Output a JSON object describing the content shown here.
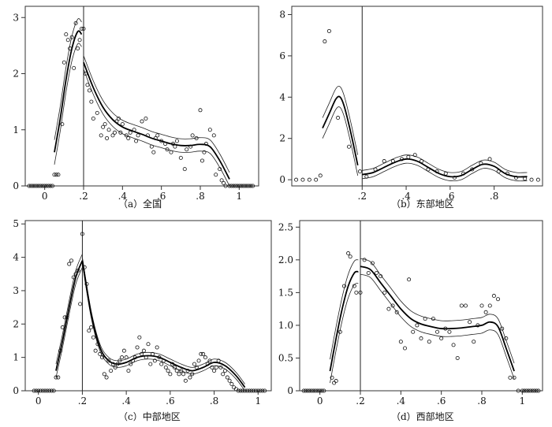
{
  "figure": {
    "captions": [
      "（a）全国",
      "（b）东部地区",
      "（c）中部地区",
      "（d）西部地区"
    ]
  },
  "chart_data": [
    {
      "type": "line",
      "caption": "（a）全国",
      "xlim": [
        -0.1,
        1.1
      ],
      "ylim": [
        0,
        3.2
      ],
      "x_ticks": [
        0,
        0.2,
        0.4,
        0.6,
        0.8,
        1
      ],
      "x_tick_labels": [
        "0",
        ".2",
        ".4",
        ".6",
        ".8",
        "1"
      ],
      "y_ticks": [
        0,
        1,
        2,
        3
      ],
      "y_tick_labels": [
        "0",
        "1",
        "2",
        "3"
      ],
      "vline_x": 0.2,
      "grid": false,
      "left_fit": {
        "x": [
          0.05,
          0.08,
          0.11,
          0.14,
          0.17,
          0.19
        ],
        "y": [
          0.6,
          1.2,
          1.9,
          2.45,
          2.75,
          2.7
        ],
        "band": 0.22
      },
      "right_fit": {
        "x": [
          0.2,
          0.25,
          0.3,
          0.35,
          0.4,
          0.45,
          0.5,
          0.55,
          0.6,
          0.65,
          0.7,
          0.75,
          0.8,
          0.85,
          0.9,
          0.95
        ],
        "y": [
          2.2,
          1.75,
          1.4,
          1.18,
          1.05,
          0.98,
          0.92,
          0.85,
          0.8,
          0.75,
          0.72,
          0.72,
          0.74,
          0.7,
          0.45,
          0.12
        ],
        "band": 0.12
      },
      "scatter": {
        "x": [
          -0.08,
          -0.07,
          -0.06,
          -0.05,
          -0.04,
          -0.03,
          -0.02,
          -0.01,
          0.0,
          0.01,
          0.02,
          0.03,
          0.04,
          0.05,
          0.06,
          0.07,
          0.09,
          0.1,
          0.11,
          0.12,
          0.13,
          0.14,
          0.15,
          0.16,
          0.17,
          0.18,
          0.19,
          0.2,
          0.21,
          0.22,
          0.23,
          0.24,
          0.25,
          0.27,
          0.29,
          0.3,
          0.31,
          0.32,
          0.33,
          0.35,
          0.36,
          0.37,
          0.38,
          0.39,
          0.4,
          0.42,
          0.43,
          0.44,
          0.46,
          0.47,
          0.48,
          0.5,
          0.52,
          0.53,
          0.55,
          0.56,
          0.57,
          0.58,
          0.6,
          0.62,
          0.63,
          0.65,
          0.66,
          0.67,
          0.68,
          0.7,
          0.72,
          0.73,
          0.75,
          0.76,
          0.78,
          0.8,
          0.81,
          0.82,
          0.83,
          0.85,
          0.87,
          0.88,
          0.9,
          0.91,
          0.92,
          0.93,
          0.95,
          0.96,
          0.97,
          0.98,
          0.99,
          1.0,
          1.01,
          1.02,
          1.03,
          1.04,
          1.05,
          1.06,
          1.07
        ],
        "y": [
          0,
          0,
          0,
          0,
          0,
          0,
          0,
          0,
          0,
          0,
          0,
          0,
          0,
          0.2,
          0.2,
          0.2,
          1.1,
          2.2,
          2.7,
          2.6,
          2.45,
          2.65,
          2.1,
          2.9,
          2.45,
          2.6,
          2.8,
          2.8,
          2.0,
          1.8,
          1.7,
          1.5,
          1.2,
          1.3,
          0.9,
          1.05,
          1.1,
          0.85,
          1.0,
          0.9,
          0.95,
          1.15,
          1.2,
          0.95,
          1.1,
          0.9,
          0.85,
          0.95,
          1.0,
          0.8,
          0.9,
          1.15,
          1.2,
          0.9,
          0.7,
          0.6,
          0.85,
          0.9,
          0.8,
          0.75,
          0.65,
          0.6,
          0.75,
          0.7,
          0.8,
          0.5,
          0.3,
          0.65,
          0.7,
          0.9,
          0.85,
          1.35,
          0.45,
          0.6,
          0.75,
          1.0,
          0.9,
          0.2,
          0.3,
          0.1,
          0.05,
          0,
          0,
          0,
          0,
          0,
          0,
          0,
          0,
          0,
          0,
          0,
          0,
          0,
          0
        ]
      }
    },
    {
      "type": "line",
      "caption": "（b）东部地区",
      "xlim": [
        -0.12,
        1.02
      ],
      "ylim": [
        -0.3,
        8.4
      ],
      "x_ticks": [
        0.2,
        0.4,
        0.6,
        0.8
      ],
      "x_tick_labels": [
        ".2",
        ".4",
        ".6",
        ".8"
      ],
      "y_ticks": [
        0,
        2,
        4,
        6,
        8
      ],
      "y_tick_labels": [
        "0",
        "2",
        "4",
        "6",
        "8"
      ],
      "vline_x": 0.2,
      "grid": false,
      "left_fit": {
        "x": [
          0.02,
          0.05,
          0.08,
          0.1,
          0.12,
          0.15,
          0.18
        ],
        "y": [
          2.5,
          3.2,
          3.9,
          4.0,
          3.5,
          2.2,
          0.7
        ],
        "band": 0.5
      },
      "right_fit": {
        "x": [
          0.2,
          0.25,
          0.3,
          0.35,
          0.4,
          0.45,
          0.5,
          0.55,
          0.6,
          0.65,
          0.7,
          0.75,
          0.8,
          0.85,
          0.9,
          0.95
        ],
        "y": [
          0.25,
          0.35,
          0.6,
          0.85,
          1.0,
          0.9,
          0.6,
          0.3,
          0.15,
          0.2,
          0.5,
          0.75,
          0.65,
          0.3,
          0.15,
          0.15
        ],
        "band": 0.2
      },
      "scatter": {
        "x": [
          -0.1,
          -0.07,
          -0.04,
          -0.01,
          0.01,
          0.03,
          0.05,
          0.09,
          0.14,
          0.19,
          0.22,
          0.26,
          0.3,
          0.34,
          0.38,
          0.41,
          0.44,
          0.47,
          0.5,
          0.54,
          0.58,
          0.62,
          0.66,
          0.7,
          0.74,
          0.78,
          0.82,
          0.86,
          0.9,
          0.94,
          0.97,
          1.0
        ],
        "y": [
          0,
          0,
          0,
          0,
          0.2,
          6.7,
          7.2,
          3.0,
          1.6,
          0.4,
          0.15,
          0.5,
          0.9,
          0.9,
          1.0,
          1.1,
          1.2,
          0.9,
          0.5,
          0.4,
          0.3,
          0.1,
          0.3,
          0.5,
          0.8,
          1.0,
          0.4,
          0.3,
          0.1,
          0.05,
          0.0,
          0.0
        ]
      }
    },
    {
      "type": "line",
      "caption": "（c）中部地区",
      "xlim": [
        -0.06,
        1.06
      ],
      "ylim": [
        0,
        5.1
      ],
      "x_ticks": [
        0,
        0.2,
        0.4,
        0.6,
        0.8,
        1
      ],
      "x_tick_labels": [
        "0",
        ".2",
        ".4",
        ".6",
        ".8",
        "1"
      ],
      "y_ticks": [
        0,
        1,
        2,
        3,
        4,
        5
      ],
      "y_tick_labels": [
        "0",
        "1",
        "2",
        "3",
        "4",
        "5"
      ],
      "vline_x": 0.2,
      "grid": false,
      "left_fit": {
        "x": [
          0.08,
          0.11,
          0.14,
          0.17,
          0.2
        ],
        "y": [
          0.6,
          1.5,
          2.5,
          3.4,
          3.9
        ],
        "band": 0.2
      },
      "right_fit": {
        "x": [
          0.2,
          0.24,
          0.28,
          0.32,
          0.36,
          0.4,
          0.45,
          0.5,
          0.55,
          0.6,
          0.65,
          0.7,
          0.75,
          0.8,
          0.85,
          0.9,
          0.94
        ],
        "y": [
          3.9,
          2.3,
          1.3,
          0.9,
          0.8,
          0.85,
          1.0,
          1.05,
          1.0,
          0.85,
          0.7,
          0.6,
          0.7,
          0.85,
          0.75,
          0.45,
          0.1
        ],
        "band": 0.1
      },
      "scatter": {
        "x": [
          -0.02,
          -0.01,
          0.0,
          0.01,
          0.02,
          0.03,
          0.04,
          0.05,
          0.06,
          0.07,
          0.08,
          0.09,
          0.1,
          0.11,
          0.12,
          0.13,
          0.14,
          0.15,
          0.16,
          0.17,
          0.18,
          0.19,
          0.2,
          0.21,
          0.22,
          0.23,
          0.24,
          0.25,
          0.26,
          0.27,
          0.28,
          0.29,
          0.3,
          0.31,
          0.32,
          0.33,
          0.34,
          0.35,
          0.36,
          0.37,
          0.38,
          0.39,
          0.4,
          0.41,
          0.42,
          0.43,
          0.44,
          0.45,
          0.46,
          0.47,
          0.48,
          0.49,
          0.5,
          0.51,
          0.52,
          0.53,
          0.54,
          0.55,
          0.56,
          0.57,
          0.58,
          0.59,
          0.6,
          0.61,
          0.62,
          0.63,
          0.64,
          0.65,
          0.66,
          0.67,
          0.68,
          0.69,
          0.7,
          0.71,
          0.72,
          0.73,
          0.74,
          0.75,
          0.76,
          0.77,
          0.78,
          0.79,
          0.8,
          0.81,
          0.82,
          0.83,
          0.84,
          0.85,
          0.86,
          0.87,
          0.88,
          0.89,
          0.9,
          0.91,
          0.92,
          0.93,
          0.94,
          0.95,
          0.96,
          0.97,
          0.98,
          0.99,
          1.0,
          1.01,
          1.02,
          1.03
        ],
        "y": [
          0,
          0,
          0,
          0,
          0,
          0,
          0,
          0,
          0,
          0,
          0.4,
          0.4,
          1.2,
          1.9,
          2.2,
          2.2,
          3.8,
          3.9,
          3.4,
          3.5,
          3.6,
          2.6,
          4.7,
          3.7,
          3.2,
          1.8,
          1.9,
          1.6,
          1.2,
          1.4,
          1.1,
          1.0,
          0.5,
          0.4,
          0.9,
          0.6,
          0.8,
          0.7,
          0.8,
          0.9,
          1.0,
          1.2,
          1.0,
          0.6,
          0.8,
          0.9,
          1.0,
          1.3,
          1.6,
          1.1,
          1.2,
          1.0,
          1.4,
          0.8,
          1.1,
          0.9,
          1.3,
          1.0,
          0.8,
          0.9,
          0.7,
          0.6,
          0.5,
          0.8,
          0.7,
          0.6,
          0.5,
          0.6,
          0.5,
          0.3,
          0.6,
          0.4,
          0.5,
          0.8,
          0.7,
          0.9,
          1.1,
          1.1,
          1.0,
          0.8,
          0.9,
          0.7,
          0.6,
          0.7,
          0.9,
          0.7,
          0.5,
          0.6,
          0.4,
          0.3,
          0.2,
          0.1,
          0.05,
          0,
          0,
          0,
          0,
          0,
          0,
          0,
          0,
          0,
          0,
          0,
          0,
          0
        ]
      }
    },
    {
      "type": "line",
      "caption": "（d）西部地区",
      "xlim": [
        -0.1,
        1.1
      ],
      "ylim": [
        0,
        2.6
      ],
      "x_ticks": [
        0,
        0.2,
        0.4,
        0.6,
        0.8,
        1
      ],
      "x_tick_labels": [
        "0",
        ".2",
        ".4",
        ".6",
        ".8",
        "1"
      ],
      "y_ticks": [
        0,
        0.5,
        1.0,
        1.5,
        2.0,
        2.5
      ],
      "y_tick_labels": [
        "0",
        "0.5",
        "1.0",
        "1.5",
        "2.0",
        "2.5"
      ],
      "vline_x": 0.2,
      "grid": false,
      "left_fit": {
        "x": [
          0.05,
          0.08,
          0.11,
          0.14,
          0.17,
          0.19
        ],
        "y": [
          0.3,
          0.8,
          1.25,
          1.6,
          1.8,
          1.82
        ],
        "band": 0.18
      },
      "right_fit": {
        "x": [
          0.2,
          0.25,
          0.3,
          0.35,
          0.4,
          0.45,
          0.5,
          0.55,
          0.6,
          0.65,
          0.7,
          0.75,
          0.8,
          0.84,
          0.88,
          0.92,
          0.96
        ],
        "y": [
          1.9,
          1.85,
          1.65,
          1.45,
          1.25,
          1.1,
          1.02,
          0.98,
          0.95,
          0.95,
          0.96,
          0.98,
          1.0,
          1.05,
          0.98,
          0.65,
          0.3
        ],
        "band": 0.12
      },
      "scatter": {
        "x": [
          -0.08,
          -0.07,
          -0.06,
          -0.05,
          -0.04,
          -0.03,
          -0.02,
          -0.01,
          0.0,
          0.01,
          0.02,
          0.06,
          0.07,
          0.08,
          0.1,
          0.12,
          0.14,
          0.15,
          0.17,
          0.18,
          0.2,
          0.22,
          0.24,
          0.26,
          0.28,
          0.3,
          0.32,
          0.34,
          0.36,
          0.38,
          0.4,
          0.42,
          0.44,
          0.46,
          0.48,
          0.5,
          0.52,
          0.54,
          0.56,
          0.58,
          0.6,
          0.62,
          0.64,
          0.66,
          0.68,
          0.7,
          0.72,
          0.74,
          0.76,
          0.78,
          0.8,
          0.82,
          0.84,
          0.86,
          0.88,
          0.9,
          0.92,
          0.94,
          0.96,
          0.98,
          1.0,
          1.01,
          1.02,
          1.03,
          1.04,
          1.05,
          1.06,
          1.07,
          1.08
        ],
        "y": [
          0,
          0,
          0,
          0,
          0,
          0,
          0,
          0,
          0,
          0,
          0,
          0.2,
          0.12,
          0.15,
          0.9,
          1.6,
          2.1,
          2.05,
          1.6,
          1.5,
          1.5,
          2.0,
          1.8,
          1.95,
          1.8,
          1.75,
          1.5,
          1.25,
          1.3,
          1.2,
          0.75,
          0.65,
          1.7,
          0.9,
          1.0,
          0.8,
          1.1,
          0.75,
          1.1,
          0.9,
          0.8,
          0.95,
          0.9,
          0.7,
          0.5,
          1.3,
          1.3,
          1.05,
          0.75,
          1.0,
          1.3,
          1.2,
          1.3,
          1.45,
          1.4,
          0.95,
          0.8,
          0.2,
          0.2,
          0,
          0,
          0,
          0,
          0,
          0,
          0,
          0,
          0,
          0
        ]
      }
    }
  ]
}
